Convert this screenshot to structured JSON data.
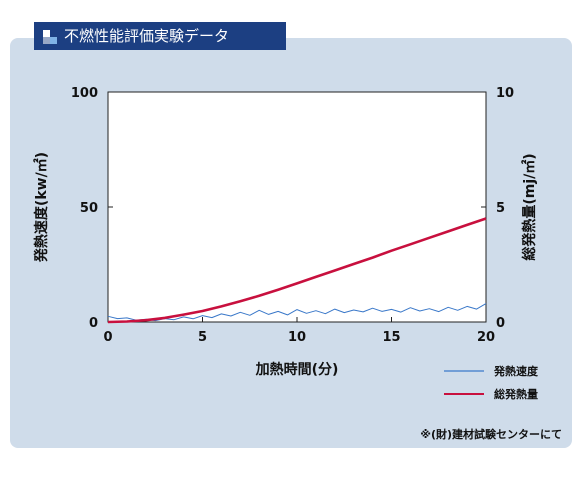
{
  "header": {
    "title": "不燃性能評価実験データ"
  },
  "footnote": "※(財)建材試験センターにて",
  "chart_data": {
    "type": "line",
    "xlabel": "加熱時間(分)",
    "ylabel_left": "発熱速度(kw/㎡)",
    "ylabel_right": "総発熱量(mj/㎡)",
    "xlim": [
      0,
      20
    ],
    "ylim_left": [
      0,
      100
    ],
    "ylim_right": [
      0,
      10
    ],
    "x_ticks": [
      "0",
      "5",
      "10",
      "15",
      "20"
    ],
    "y_left_ticks": [
      "0",
      "50",
      "100"
    ],
    "y_right_ticks": [
      "0",
      "5",
      "10"
    ],
    "legend_position": "bottom-right",
    "series": [
      {
        "name": "発熱速度",
        "axis": "left",
        "color": "#3a78c9",
        "x": [
          0,
          0.5,
          1,
          1.5,
          2,
          2.5,
          3,
          3.5,
          4,
          4.5,
          5,
          5.5,
          6,
          6.5,
          7,
          7.5,
          8,
          8.5,
          9,
          9.5,
          10,
          10.5,
          11,
          11.5,
          12,
          12.5,
          13,
          13.5,
          14,
          14.5,
          15,
          15.5,
          16,
          16.5,
          17,
          17.5,
          18,
          18.5,
          19,
          19.5,
          20
        ],
        "values": [
          2.5,
          1.5,
          1.8,
          0.8,
          1.2,
          0.6,
          1.5,
          1.0,
          2.2,
          1.4,
          2.8,
          1.9,
          3.5,
          2.6,
          4.2,
          2.9,
          5.1,
          3.3,
          4.6,
          3.1,
          5.4,
          3.8,
          4.9,
          3.6,
          5.6,
          4.1,
          5.2,
          4.4,
          6.0,
          4.6,
          5.5,
          4.3,
          6.2,
          4.8,
          5.8,
          4.5,
          6.4,
          5.1,
          6.8,
          5.6,
          8.0
        ]
      },
      {
        "name": "総発熱量",
        "axis": "right",
        "color": "#c8103e",
        "x": [
          0,
          1,
          2,
          3,
          4,
          5,
          6,
          7,
          8,
          9,
          10,
          11,
          12,
          13,
          14,
          15,
          16,
          17,
          18,
          19,
          20
        ],
        "values": [
          0,
          0.02,
          0.08,
          0.18,
          0.32,
          0.48,
          0.68,
          0.9,
          1.14,
          1.4,
          1.68,
          1.96,
          2.24,
          2.52,
          2.8,
          3.1,
          3.38,
          3.66,
          3.94,
          4.22,
          4.5
        ]
      }
    ]
  }
}
